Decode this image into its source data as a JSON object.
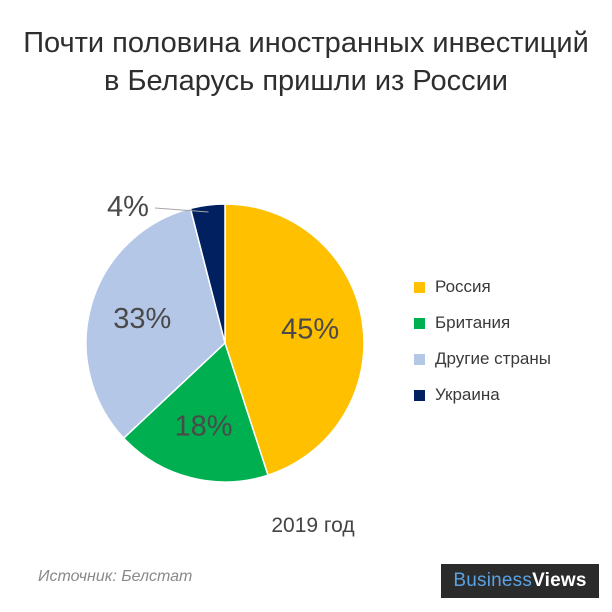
{
  "title_line1": "Почти половина иностранных инвестиций",
  "title_line2": "в Беларусь пришли из России",
  "chart_data": {
    "type": "pie",
    "title": "Почти половина иностранных инвестиций в Беларусь пришли из России",
    "categories": [
      "Россия",
      "Британия",
      "Другие страны",
      "Украина"
    ],
    "values": [
      45,
      18,
      33,
      4
    ],
    "data_labels": [
      "45%",
      "18%",
      "33%",
      "4%"
    ],
    "colors": [
      "#FFC000",
      "#00B050",
      "#B4C7E7",
      "#002060"
    ],
    "label_colors": [
      "#4a4a4a",
      "#4a4a4a",
      "#4a4a4a",
      "#4a4a4a"
    ],
    "legend_placement": "right"
  },
  "year_label": "2019 год",
  "source": "Источник: Белстат",
  "brand": {
    "part1": "Business",
    "part2": "Views"
  }
}
